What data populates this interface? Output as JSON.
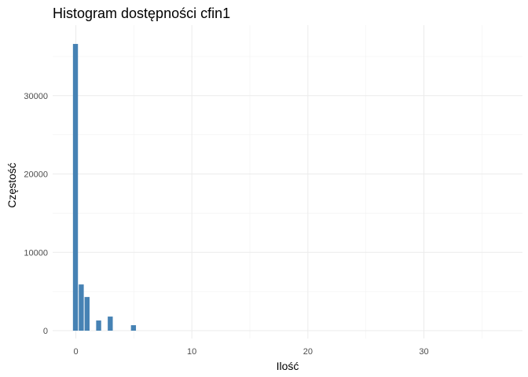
{
  "chart_data": {
    "type": "bar",
    "title": "Histogram dostępności cfin1",
    "xlabel": "Ilość",
    "ylabel": "Częstość",
    "xlim": [
      -2,
      38.5
    ],
    "ylim": [
      -1000,
      39000
    ],
    "x_ticks": [
      0,
      10,
      20,
      30
    ],
    "x_tick_labels": [
      "0",
      "10",
      "20",
      "30"
    ],
    "y_ticks": [
      0,
      10000,
      20000,
      30000
    ],
    "y_tick_labels": [
      "0",
      "10000",
      "20000",
      "30000"
    ],
    "bin_width": 0.5,
    "x": [
      0,
      0.5,
      1,
      2,
      3,
      5
    ],
    "values": [
      36600,
      5900,
      4300,
      1300,
      1800,
      700
    ],
    "bar_color": "#4682b4",
    "grid": true
  }
}
